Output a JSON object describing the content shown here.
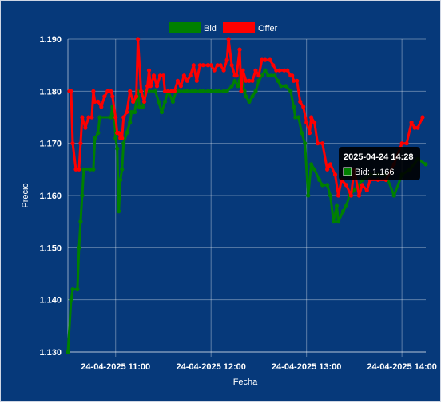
{
  "chart_data": {
    "type": "line",
    "xlabel": "Fecha",
    "ylabel": "Precio",
    "x_range": [
      "2025-04-24 10:30",
      "2025-04-24 14:15"
    ],
    "ylim": [
      1.13,
      1.19
    ],
    "y_ticks": [
      1.13,
      1.14,
      1.15,
      1.16,
      1.17,
      1.18,
      1.19
    ],
    "y_tick_labels": [
      "1.130",
      "1.140",
      "1.150",
      "1.160",
      "1.170",
      "1.180",
      "1.190"
    ],
    "x_ticks": [
      "2025-04-24 11:00",
      "2025-04-24 12:00",
      "2025-04-24 13:00",
      "2025-04-24 14:00"
    ],
    "x_tick_labels": [
      "24-04-2025 11:00",
      "24-04-2025 12:00",
      "24-04-2025 13:00",
      "24-04-2025 14:00"
    ],
    "grid": true,
    "legend_position": "top-center",
    "series": [
      {
        "name": "Bid",
        "color": "#008000",
        "points": [
          [
            "2025-04-24 10:30",
            1.13
          ],
          [
            "2025-04-24 10:32",
            1.14
          ],
          [
            "2025-04-24 10:33",
            1.142
          ],
          [
            "2025-04-24 10:36",
            1.142
          ],
          [
            "2025-04-24 10:37",
            1.15
          ],
          [
            "2025-04-24 10:38",
            1.155
          ],
          [
            "2025-04-24 10:39",
            1.16
          ],
          [
            "2025-04-24 10:40",
            1.165
          ],
          [
            "2025-04-24 10:44",
            1.165
          ],
          [
            "2025-04-24 10:46",
            1.165
          ],
          [
            "2025-04-24 10:47",
            1.171
          ],
          [
            "2025-04-24 10:49",
            1.172
          ],
          [
            "2025-04-24 10:50",
            1.175
          ],
          [
            "2025-04-24 10:57",
            1.175
          ],
          [
            "2025-04-24 10:58",
            1.177
          ],
          [
            "2025-04-24 10:59",
            1.176
          ],
          [
            "2025-04-24 11:00",
            1.171
          ],
          [
            "2025-04-24 11:01",
            1.169
          ],
          [
            "2025-04-24 11:02",
            1.157
          ],
          [
            "2025-04-24 11:03",
            1.163
          ],
          [
            "2025-04-24 11:04",
            1.165
          ],
          [
            "2025-04-24 11:05",
            1.17
          ],
          [
            "2025-04-24 11:07",
            1.172
          ],
          [
            "2025-04-24 11:09",
            1.174
          ],
          [
            "2025-04-24 11:10",
            1.176
          ],
          [
            "2025-04-24 11:12",
            1.176
          ],
          [
            "2025-04-24 11:14",
            1.18
          ],
          [
            "2025-04-24 11:15",
            1.177
          ],
          [
            "2025-04-24 11:17",
            1.177
          ],
          [
            "2025-04-24 11:19",
            1.18
          ],
          [
            "2025-04-24 11:25",
            1.18
          ],
          [
            "2025-04-24 11:27",
            1.178
          ],
          [
            "2025-04-24 11:29",
            1.176
          ],
          [
            "2025-04-24 11:31",
            1.178
          ],
          [
            "2025-04-24 11:33",
            1.18
          ],
          [
            "2025-04-24 11:36",
            1.178
          ],
          [
            "2025-04-24 11:38",
            1.18
          ],
          [
            "2025-04-24 11:40",
            1.18
          ],
          [
            "2025-04-24 11:43",
            1.18
          ],
          [
            "2025-04-24 11:45",
            1.18
          ],
          [
            "2025-04-24 11:48",
            1.18
          ],
          [
            "2025-04-24 11:50",
            1.18
          ],
          [
            "2025-04-24 11:53",
            1.18
          ],
          [
            "2025-04-24 11:55",
            1.18
          ],
          [
            "2025-04-24 11:58",
            1.18
          ],
          [
            "2025-04-24 12:00",
            1.18
          ],
          [
            "2025-04-24 12:03",
            1.18
          ],
          [
            "2025-04-24 12:05",
            1.18
          ],
          [
            "2025-04-24 12:08",
            1.18
          ],
          [
            "2025-04-24 12:10",
            1.18
          ],
          [
            "2025-04-24 12:13",
            1.181
          ],
          [
            "2025-04-24 12:15",
            1.182
          ],
          [
            "2025-04-24 12:17",
            1.181
          ],
          [
            "2025-04-24 12:18",
            1.182
          ],
          [
            "2025-04-24 12:19",
            1.184
          ],
          [
            "2025-04-24 12:20",
            1.181
          ],
          [
            "2025-04-24 12:21",
            1.18
          ],
          [
            "2025-04-24 12:22",
            1.179
          ],
          [
            "2025-04-24 12:24",
            1.178
          ],
          [
            "2025-04-24 12:26",
            1.179
          ],
          [
            "2025-04-24 12:28",
            1.18
          ],
          [
            "2025-04-24 12:30",
            1.182
          ],
          [
            "2025-04-24 12:32",
            1.183
          ],
          [
            "2025-04-24 12:34",
            1.184
          ],
          [
            "2025-04-24 12:36",
            1.183
          ],
          [
            "2025-04-24 12:38",
            1.183
          ],
          [
            "2025-04-24 12:40",
            1.183
          ],
          [
            "2025-04-24 12:42",
            1.182
          ],
          [
            "2025-04-24 12:44",
            1.181
          ],
          [
            "2025-04-24 12:47",
            1.181
          ],
          [
            "2025-04-24 12:50",
            1.18
          ],
          [
            "2025-04-24 12:52",
            1.177
          ],
          [
            "2025-04-24 12:53",
            1.175
          ],
          [
            "2025-04-24 12:55",
            1.175
          ],
          [
            "2025-04-24 12:57",
            1.172
          ],
          [
            "2025-04-24 12:59",
            1.17
          ],
          [
            "2025-04-24 13:01",
            1.16
          ],
          [
            "2025-04-24 13:03",
            1.166
          ],
          [
            "2025-04-24 13:05",
            1.165
          ],
          [
            "2025-04-24 13:08",
            1.163
          ],
          [
            "2025-04-24 13:10",
            1.162
          ],
          [
            "2025-04-24 13:13",
            1.162
          ],
          [
            "2025-04-24 13:15",
            1.16
          ],
          [
            "2025-04-24 13:17",
            1.155
          ],
          [
            "2025-04-24 13:19",
            1.158
          ],
          [
            "2025-04-24 13:20",
            1.155
          ],
          [
            "2025-04-24 13:23",
            1.157
          ],
          [
            "2025-04-24 13:25",
            1.158
          ],
          [
            "2025-04-24 13:27",
            1.16
          ],
          [
            "2025-04-24 13:30",
            1.161
          ],
          [
            "2025-04-24 13:33",
            1.162
          ],
          [
            "2025-04-24 13:35",
            1.163
          ],
          [
            "2025-04-24 13:40",
            1.164
          ],
          [
            "2025-04-24 13:45",
            1.164
          ],
          [
            "2025-04-24 13:50",
            1.164
          ],
          [
            "2025-04-24 13:55",
            1.16
          ],
          [
            "2025-04-24 14:00",
            1.164
          ],
          [
            "2025-04-24 14:05",
            1.165
          ],
          [
            "2025-04-24 14:10",
            1.167
          ],
          [
            "2025-04-24 14:15",
            1.166
          ]
        ]
      },
      {
        "name": "Offer",
        "color": "#ff0000",
        "points": [
          [
            "2025-04-24 10:31",
            1.18
          ],
          [
            "2025-04-24 10:32",
            1.18
          ],
          [
            "2025-04-24 10:33",
            1.17
          ],
          [
            "2025-04-24 10:35",
            1.165
          ],
          [
            "2025-04-24 10:37",
            1.165
          ],
          [
            "2025-04-24 10:38",
            1.17
          ],
          [
            "2025-04-24 10:39",
            1.175
          ],
          [
            "2025-04-24 10:41",
            1.173
          ],
          [
            "2025-04-24 10:43",
            1.175
          ],
          [
            "2025-04-24 10:45",
            1.175
          ],
          [
            "2025-04-24 10:46",
            1.18
          ],
          [
            "2025-04-24 10:47",
            1.178
          ],
          [
            "2025-04-24 10:49",
            1.178
          ],
          [
            "2025-04-24 10:51",
            1.177
          ],
          [
            "2025-04-24 10:53",
            1.179
          ],
          [
            "2025-04-24 10:55",
            1.18
          ],
          [
            "2025-04-24 10:57",
            1.18
          ],
          [
            "2025-04-24 10:58",
            1.179
          ],
          [
            "2025-04-24 11:00",
            1.175
          ],
          [
            "2025-04-24 11:01",
            1.172
          ],
          [
            "2025-04-24 11:02",
            1.172
          ],
          [
            "2025-04-24 11:03",
            1.171
          ],
          [
            "2025-04-24 11:04",
            1.171
          ],
          [
            "2025-04-24 11:05",
            1.175
          ],
          [
            "2025-04-24 11:07",
            1.176
          ],
          [
            "2025-04-24 11:09",
            1.18
          ],
          [
            "2025-04-24 11:11",
            1.178
          ],
          [
            "2025-04-24 11:13",
            1.179
          ],
          [
            "2025-04-24 11:14",
            1.19
          ],
          [
            "2025-04-24 11:15",
            1.185
          ],
          [
            "2025-04-24 11:16",
            1.18
          ],
          [
            "2025-04-24 11:18",
            1.178
          ],
          [
            "2025-04-24 11:20",
            1.181
          ],
          [
            "2025-04-24 11:21",
            1.184
          ],
          [
            "2025-04-24 11:22",
            1.181
          ],
          [
            "2025-04-24 11:24",
            1.183
          ],
          [
            "2025-04-24 11:26",
            1.181
          ],
          [
            "2025-04-24 11:28",
            1.183
          ],
          [
            "2025-04-24 11:30",
            1.183
          ],
          [
            "2025-04-24 11:31",
            1.18
          ],
          [
            "2025-04-24 11:33",
            1.18
          ],
          [
            "2025-04-24 11:35",
            1.18
          ],
          [
            "2025-04-24 11:37",
            1.18
          ],
          [
            "2025-04-24 11:39",
            1.182
          ],
          [
            "2025-04-24 11:41",
            1.181
          ],
          [
            "2025-04-24 11:43",
            1.183
          ],
          [
            "2025-04-24 11:45",
            1.182
          ],
          [
            "2025-04-24 11:47",
            1.183
          ],
          [
            "2025-04-24 11:49",
            1.185
          ],
          [
            "2025-04-24 11:51",
            1.182
          ],
          [
            "2025-04-24 11:53",
            1.185
          ],
          [
            "2025-04-24 11:55",
            1.185
          ],
          [
            "2025-04-24 11:58",
            1.185
          ],
          [
            "2025-04-24 12:00",
            1.185
          ],
          [
            "2025-04-24 12:02",
            1.184
          ],
          [
            "2025-04-24 12:04",
            1.185
          ],
          [
            "2025-04-24 12:06",
            1.185
          ],
          [
            "2025-04-24 12:08",
            1.184
          ],
          [
            "2025-04-24 12:10",
            1.186
          ],
          [
            "2025-04-24 12:11",
            1.19
          ],
          [
            "2025-04-24 12:13",
            1.185
          ],
          [
            "2025-04-24 12:15",
            1.183
          ],
          [
            "2025-04-24 12:16",
            1.183
          ],
          [
            "2025-04-24 12:18",
            1.188
          ],
          [
            "2025-04-24 12:19",
            1.18
          ],
          [
            "2025-04-24 12:20",
            1.184
          ],
          [
            "2025-04-24 12:22",
            1.182
          ],
          [
            "2025-04-24 12:24",
            1.182
          ],
          [
            "2025-04-24 12:26",
            1.182
          ],
          [
            "2025-04-24 12:28",
            1.184
          ],
          [
            "2025-04-24 12:30",
            1.183
          ],
          [
            "2025-04-24 12:32",
            1.186
          ],
          [
            "2025-04-24 12:34",
            1.186
          ],
          [
            "2025-04-24 12:37",
            1.186
          ],
          [
            "2025-04-24 12:39",
            1.185
          ],
          [
            "2025-04-24 12:41",
            1.184
          ],
          [
            "2025-04-24 12:43",
            1.184
          ],
          [
            "2025-04-24 12:46",
            1.184
          ],
          [
            "2025-04-24 12:48",
            1.184
          ],
          [
            "2025-04-24 12:50",
            1.183
          ],
          [
            "2025-04-24 12:51",
            1.183
          ],
          [
            "2025-04-24 12:52",
            1.182
          ],
          [
            "2025-04-24 12:54",
            1.182
          ],
          [
            "2025-04-24 12:56",
            1.178
          ],
          [
            "2025-04-24 12:58",
            1.177
          ],
          [
            "2025-04-24 13:00",
            1.174
          ],
          [
            "2025-04-24 13:02",
            1.172
          ],
          [
            "2025-04-24 13:03",
            1.175
          ],
          [
            "2025-04-24 13:05",
            1.174
          ],
          [
            "2025-04-24 13:07",
            1.17
          ],
          [
            "2025-04-24 13:10",
            1.17
          ],
          [
            "2025-04-24 13:13",
            1.165
          ],
          [
            "2025-04-24 13:15",
            1.166
          ],
          [
            "2025-04-24 13:18",
            1.164
          ],
          [
            "2025-04-24 13:20",
            1.16
          ],
          [
            "2025-04-24 13:22",
            1.163
          ],
          [
            "2025-04-24 13:25",
            1.162
          ],
          [
            "2025-04-24 13:28",
            1.16
          ],
          [
            "2025-04-24 13:30",
            1.165
          ],
          [
            "2025-04-24 13:33",
            1.16
          ],
          [
            "2025-04-24 13:35",
            1.162
          ],
          [
            "2025-04-24 13:38",
            1.161
          ],
          [
            "2025-04-24 13:40",
            1.163
          ],
          [
            "2025-04-24 13:45",
            1.163
          ],
          [
            "2025-04-24 13:50",
            1.163
          ],
          [
            "2025-04-24 13:55",
            1.166
          ],
          [
            "2025-04-24 14:00",
            1.17
          ],
          [
            "2025-04-24 14:03",
            1.17
          ],
          [
            "2025-04-24 14:06",
            1.174
          ],
          [
            "2025-04-24 14:08",
            1.173
          ],
          [
            "2025-04-24 14:10",
            1.173
          ],
          [
            "2025-04-24 14:13",
            1.175
          ]
        ]
      }
    ]
  },
  "tooltip": {
    "title": "2025-04-24 14:28",
    "series_label": "Bid",
    "value_text": "1.166",
    "swatch_color": "#008000",
    "text": "Bid: 1.166"
  },
  "colors": {
    "background": "#06397a",
    "grid": "#ffffff",
    "text": "#ffffff",
    "tooltip_bg": "#000000"
  }
}
